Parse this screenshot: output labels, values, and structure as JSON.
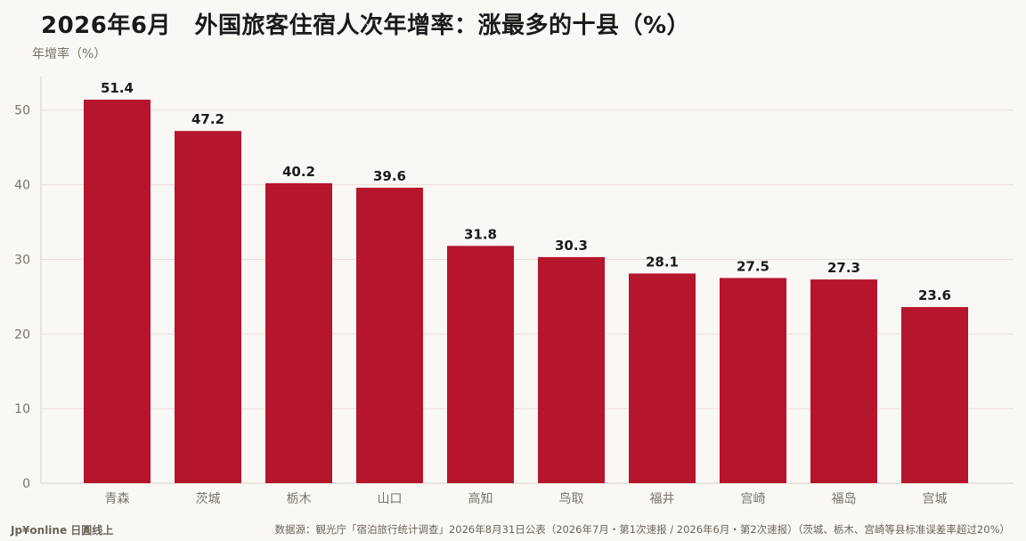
{
  "chart_data": {
    "type": "bar",
    "title": "2026年6月　外国旅客住宿人次年增率：涨最多的十县（%）",
    "ylabel": "年增率（%）",
    "xlabel": "",
    "categories": [
      "青森",
      "茨城",
      "栃木",
      "山口",
      "高知",
      "鸟取",
      "福井",
      "宫崎",
      "福岛",
      "宫城"
    ],
    "values": [
      51.4,
      47.2,
      40.2,
      39.6,
      31.8,
      30.3,
      28.1,
      27.5,
      27.3,
      23.6
    ],
    "value_labels": [
      "51.4",
      "47.2",
      "40.2",
      "39.6",
      "31.8",
      "30.3",
      "28.1",
      "27.5",
      "27.3",
      "23.6"
    ],
    "ylim": [
      0,
      54.5
    ],
    "yticks": [
      0,
      10,
      20,
      30,
      40,
      50
    ],
    "grid": true,
    "bar_color": "#b5152d"
  },
  "footer": {
    "brand": "Jp¥online 日圓线上",
    "source": "数据源：観光庁「宿泊旅行统计调查」2026年8月31日公表（2026年7月・第1次速报 / 2026年6月・第2次速报）（茨城、栃木、宫崎等县标准误差率超过20%）"
  }
}
